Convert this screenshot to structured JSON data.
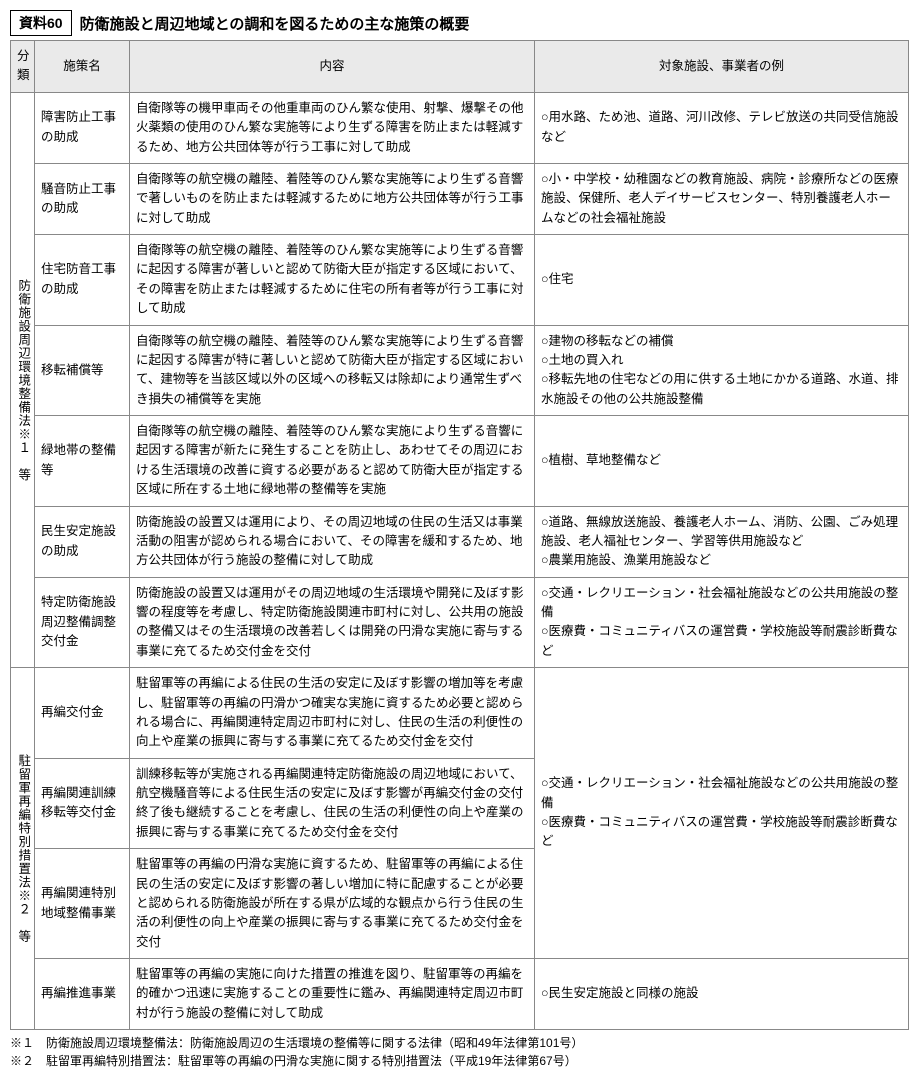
{
  "header": {
    "label": "資料60",
    "title": "防衛施設と周辺地域との調和を図るための主な施策の概要"
  },
  "columns": {
    "cat": "分類",
    "name": "施策名",
    "content": "内容",
    "example": "対象施設、事業者の例"
  },
  "groups": [
    {
      "cat": "防衛施設周辺環境整備法※１　等",
      "rows": [
        {
          "name": "障害防止工事の助成",
          "content": "自衛隊等の機甲車両その他重車両のひん繁な使用、射撃、爆撃その他火薬類の使用のひん繁な実施等により生ずる障害を防止または軽減するため、地方公共団体等が行う工事に対して助成",
          "example": "○用水路、ため池、道路、河川改修、テレビ放送の共同受信施設など"
        },
        {
          "name": "騒音防止工事の助成",
          "content": "自衛隊等の航空機の離陸、着陸等のひん繁な実施等により生ずる音響で著しいものを防止または軽減するために地方公共団体等が行う工事に対して助成",
          "example": "○小・中学校・幼稚園などの教育施設、病院・診療所などの医療施設、保健所、老人デイサービスセンター、特別養護老人ホームなどの社会福祉施設"
        },
        {
          "name": "住宅防音工事の助成",
          "content": "自衛隊等の航空機の離陸、着陸等のひん繁な実施等により生ずる音響に起因する障害が著しいと認めて防衛大臣が指定する区域において、その障害を防止または軽減するために住宅の所有者等が行う工事に対して助成",
          "example": "○住宅"
        },
        {
          "name": "移転補償等",
          "content": "自衛隊等の航空機の離陸、着陸等のひん繁な実施等により生ずる音響に起因する障害が特に著しいと認めて防衛大臣が指定する区域において、建物等を当該区域以外の区域への移転又は除却により通常生ずべき損失の補償等を実施",
          "example": "○建物の移転などの補償\n○土地の買入れ\n○移転先地の住宅などの用に供する土地にかかる道路、水道、排水施設その他の公共施設整備"
        },
        {
          "name": "緑地帯の整備等",
          "content": "自衛隊等の航空機の離陸、着陸等のひん繁な実施により生ずる音響に起因する障害が新たに発生することを防止し、あわせてその周辺における生活環境の改善に資する必要があると認めて防衛大臣が指定する区域に所在する土地に緑地帯の整備等を実施",
          "example": "○植樹、草地整備など"
        },
        {
          "name": "民生安定施設の助成",
          "content": "防衛施設の設置又は運用により、その周辺地域の住民の生活又は事業活動の阻害が認められる場合において、その障害を緩和するため、地方公共団体が行う施設の整備に対して助成",
          "example": "○道路、無線放送施設、養護老人ホーム、消防、公園、ごみ処理施設、老人福祉センター、学習等供用施設など\n○農業用施設、漁業用施設など"
        },
        {
          "name": "特定防衛施設周辺整備調整交付金",
          "content": "防衛施設の設置又は運用がその周辺地域の生活環境や開発に及ぼす影響の程度等を考慮し、特定防衛施設関連市町村に対し、公共用の施設の整備又はその生活環境の改善若しくは開発の円滑な実施に寄与する事業に充てるため交付金を交付",
          "example": "○交通・レクリエーション・社会福祉施設などの公共用施設の整備\n○医療費・コミュニティバスの運営費・学校施設等耐震診断費など"
        }
      ]
    },
    {
      "cat": "駐留軍再編特別措置法※２　等",
      "sharedExample": "○交通・レクリエーション・社会福祉施設などの公共用施設の整備\n○医療費・コミュニティバスの運営費・学校施設等耐震診断費など",
      "rows": [
        {
          "name": "再編交付金",
          "content": "駐留軍等の再編による住民の生活の安定に及ぼす影響の増加等を考慮し、駐留軍等の再編の円滑かつ確実な実施に資するため必要と認められる場合に、再編関連特定周辺市町村に対し、住民の生活の利便性の向上や産業の振興に寄与する事業に充てるため交付金を交付"
        },
        {
          "name": "再編関連訓練移転等交付金",
          "content": "訓練移転等が実施される再編関連特定防衛施設の周辺地域において、航空機騒音等による住民生活の安定に及ぼす影響が再編交付金の交付終了後も継続することを考慮し、住民の生活の利便性の向上や産業の振興に寄与する事業に充てるため交付金を交付"
        },
        {
          "name": "再編関連特別地域整備事業",
          "content": "駐留軍等の再編の円滑な実施に資するため、駐留軍等の再編による住民の生活の安定に及ぼす影響の著しい増加に特に配慮することが必要と認められる防衛施設が所在する県が広域的な観点から行う住民の生活の利便性の向上や産業の振興に寄与する事業に充てるため交付金を交付"
        },
        {
          "name": "再編推進事業",
          "content": "駐留軍等の再編の実施に向けた措置の推進を図り、駐留軍等の再編を的確かつ迅速に実施することの重要性に鑑み、再編関連特定周辺市町村が行う施設の整備に対して助成",
          "example": "○民生安定施設と同様の施設"
        }
      ]
    }
  ],
  "notes": {
    "n1": "※１　防衛施設周辺環境整備法：防衛施設周辺の生活環境の整備等に関する法律（昭和49年法律第101号）",
    "n2": "※２　駐留軍再編特別措置法：駐留軍等の再編の円滑な実施に関する特別措置法（平成19年法律第67号）"
  }
}
